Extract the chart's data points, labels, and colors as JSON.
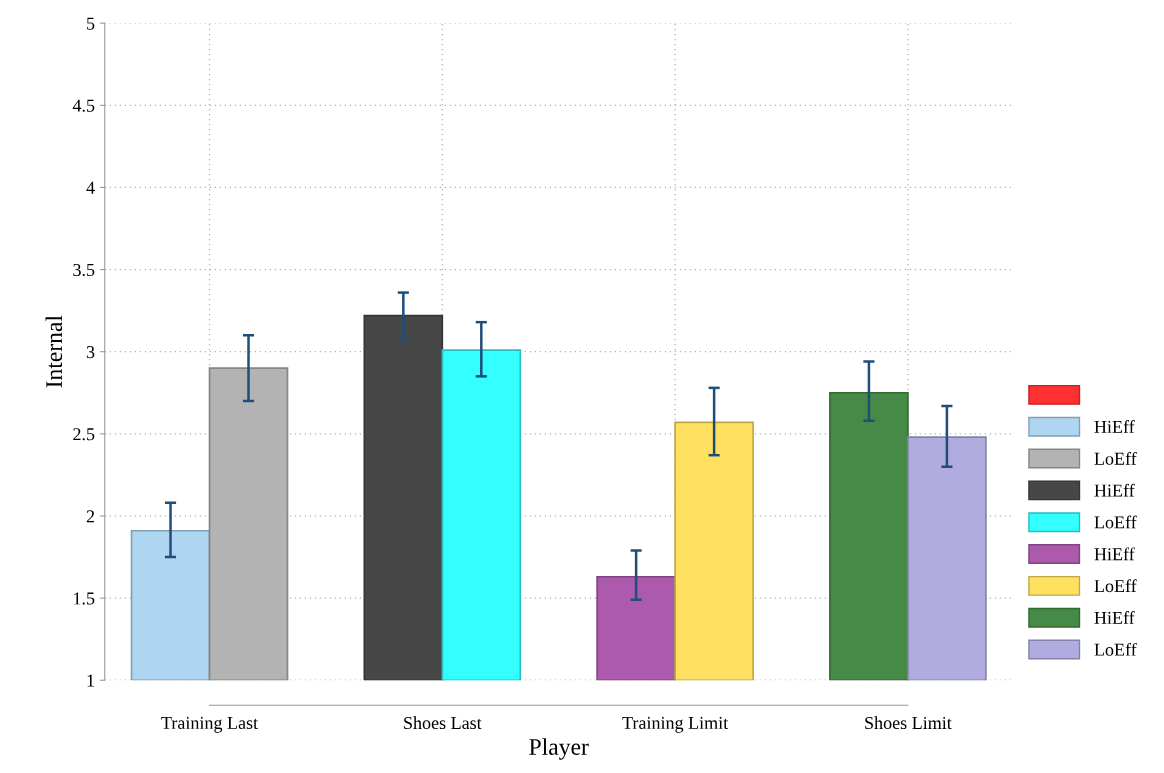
{
  "chart_data": {
    "type": "bar",
    "xlabel": "Player",
    "ylabel": "Internal",
    "categories": [
      "Training Last",
      "Shoes Last",
      "Training Limit",
      "Shoes Limit"
    ],
    "series": [
      {
        "color": "#ff3030",
        "values": [
          null,
          null,
          null,
          null
        ]
      },
      {
        "name": "HiEff",
        "color": "#aed6f1",
        "values": [
          1.91,
          null,
          null,
          null
        ],
        "errors": [
          [
            1.75,
            2.08
          ],
          null,
          null,
          null
        ]
      },
      {
        "name": "LoEff",
        "color": "#b3b3b3",
        "values": [
          2.9,
          null,
          null,
          null
        ],
        "errors": [
          [
            2.7,
            3.1
          ],
          null,
          null,
          null
        ]
      },
      {
        "name": "HiEff",
        "color": "#474747",
        "values": [
          null,
          3.22,
          null,
          null
        ],
        "errors": [
          null,
          [
            3.07,
            3.36
          ],
          null,
          null
        ]
      },
      {
        "name": "LoEff",
        "color": "#33ffff",
        "values": [
          null,
          3.01,
          null,
          null
        ],
        "errors": [
          null,
          [
            2.85,
            3.18
          ],
          null,
          null
        ]
      },
      {
        "name": "HiEff",
        "color": "#ab5aad",
        "values": [
          null,
          null,
          1.63,
          null
        ],
        "errors": [
          null,
          null,
          [
            1.49,
            1.79
          ],
          null
        ]
      },
      {
        "name": "LoEff",
        "color": "#ffe060",
        "values": [
          null,
          null,
          2.57,
          null
        ],
        "errors": [
          null,
          null,
          [
            2.37,
            2.78
          ],
          null
        ]
      },
      {
        "name": "HiEff",
        "color": "#458b47",
        "values": [
          null,
          null,
          null,
          2.75
        ],
        "errors": [
          null,
          null,
          null,
          [
            2.58,
            2.94
          ]
        ]
      },
      {
        "name": "LoEff",
        "color": "#b0acdf",
        "values": [
          null,
          null,
          null,
          2.48
        ],
        "errors": [
          null,
          null,
          null,
          [
            2.3,
            2.67
          ]
        ]
      }
    ],
    "ylim": [
      1,
      5
    ],
    "yticks": [
      1,
      1.5,
      2,
      2.5,
      3,
      3.5,
      4,
      4.5,
      5
    ],
    "grid": true,
    "legend": "right"
  }
}
